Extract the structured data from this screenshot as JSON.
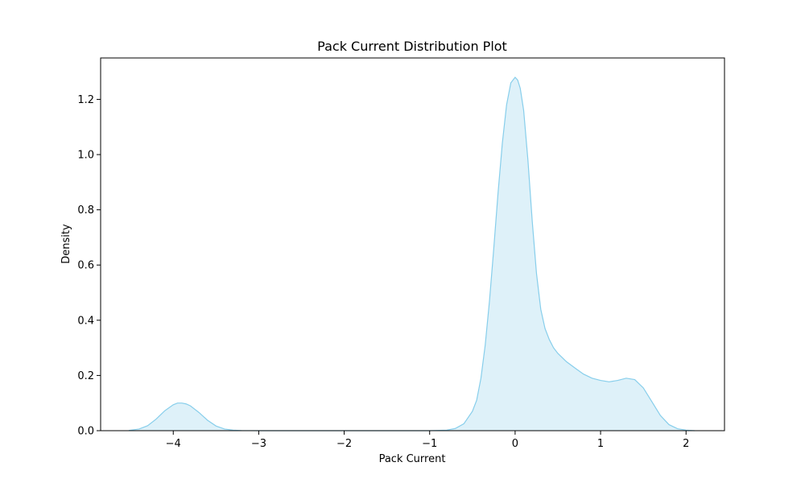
{
  "chart_data": {
    "type": "area",
    "title": "Pack Current Distribution Plot",
    "xlabel": "Pack Current",
    "ylabel": "Density",
    "xlim": [
      -4.85,
      2.45
    ],
    "ylim": [
      0,
      1.35
    ],
    "xticks": [
      -4,
      -3,
      -2,
      -1,
      0,
      1,
      2
    ],
    "xtick_labels": [
      "−4",
      "−3",
      "−2",
      "−1",
      "0",
      "1",
      "2"
    ],
    "yticks": [
      0.0,
      0.2,
      0.4,
      0.6,
      0.8,
      1.0,
      1.2
    ],
    "ytick_labels": [
      "0.0",
      "0.2",
      "0.4",
      "0.6",
      "0.8",
      "1.0",
      "1.2"
    ],
    "grid": false,
    "legend": false,
    "series": [
      {
        "color": "#87ceeb",
        "fill_color": "#87ceeb",
        "fill_opacity": 0.28,
        "x": [
          -4.52,
          -4.4,
          -4.3,
          -4.2,
          -4.1,
          -4.0,
          -3.95,
          -3.9,
          -3.85,
          -3.8,
          -3.7,
          -3.6,
          -3.5,
          -3.4,
          -3.3,
          -3.2,
          -3.0,
          -2.5,
          -2.0,
          -1.5,
          -1.0,
          -0.8,
          -0.7,
          -0.6,
          -0.5,
          -0.45,
          -0.4,
          -0.35,
          -0.3,
          -0.25,
          -0.2,
          -0.15,
          -0.1,
          -0.05,
          0.0,
          0.03,
          0.06,
          0.1,
          0.15,
          0.2,
          0.25,
          0.3,
          0.35,
          0.4,
          0.45,
          0.5,
          0.6,
          0.7,
          0.8,
          0.9,
          1.0,
          1.1,
          1.2,
          1.3,
          1.4,
          1.5,
          1.6,
          1.7,
          1.8,
          1.9,
          2.0,
          2.1
        ],
        "y": [
          0.001,
          0.006,
          0.018,
          0.042,
          0.072,
          0.094,
          0.1,
          0.1,
          0.097,
          0.09,
          0.066,
          0.038,
          0.017,
          0.006,
          0.002,
          0.0005,
          0.0,
          0.0,
          0.0,
          0.0,
          0.0,
          0.002,
          0.008,
          0.025,
          0.07,
          0.11,
          0.19,
          0.31,
          0.47,
          0.66,
          0.86,
          1.04,
          1.18,
          1.26,
          1.28,
          1.27,
          1.24,
          1.16,
          0.98,
          0.76,
          0.57,
          0.44,
          0.37,
          0.33,
          0.3,
          0.28,
          0.25,
          0.227,
          0.205,
          0.19,
          0.182,
          0.177,
          0.182,
          0.19,
          0.185,
          0.155,
          0.105,
          0.055,
          0.022,
          0.007,
          0.002,
          0.0
        ]
      }
    ]
  }
}
